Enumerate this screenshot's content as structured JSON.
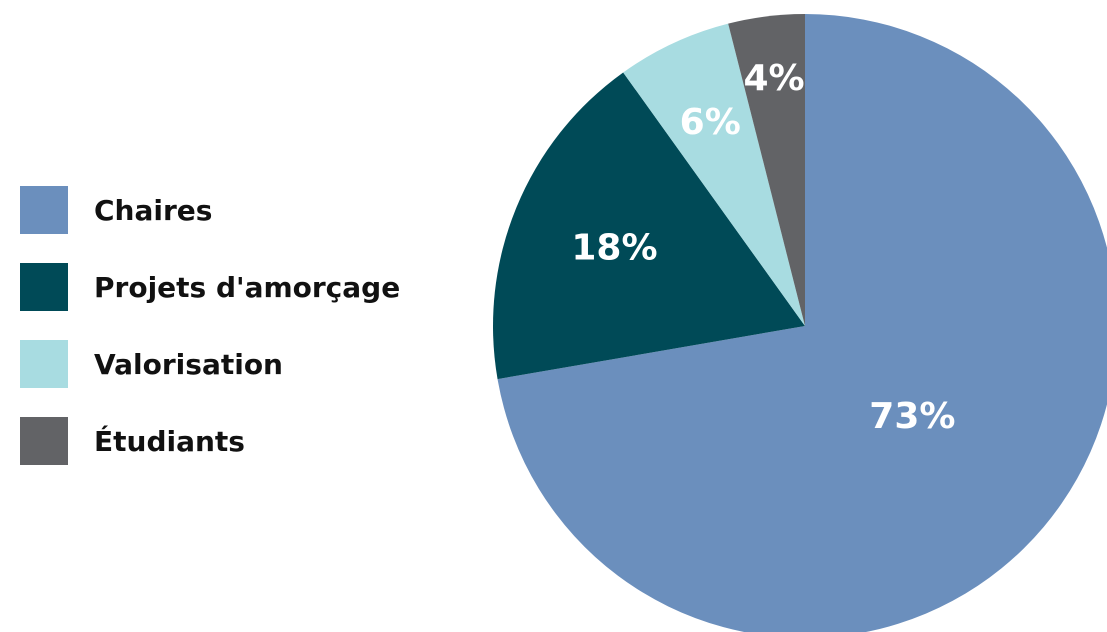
{
  "chart_data": {
    "type": "pie",
    "slices": [
      {
        "name": "Chaires",
        "value": 73,
        "label": "73%",
        "color": "#6b8fbd"
      },
      {
        "name": "Projets d'amorçage",
        "value": 18,
        "label": "18%",
        "color": "#004a57"
      },
      {
        "name": "Valorisation",
        "value": 6,
        "label": "6%",
        "color": "#a8dce1"
      },
      {
        "name": "Étudiants",
        "value": 4,
        "label": "4%",
        "color": "#626366"
      }
    ],
    "legend_position": "left",
    "start_angle": "top",
    "direction": "clockwise"
  }
}
